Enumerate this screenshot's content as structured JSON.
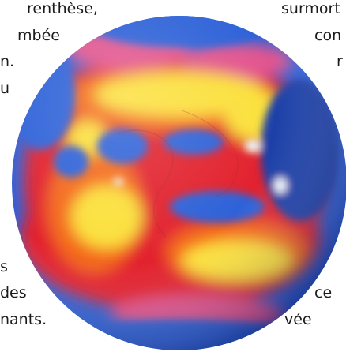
{
  "text_fragments": {
    "left": [
      "renthèse,",
      "mbée",
      "n.",
      "u",
      "s",
      "des",
      "nants."
    ],
    "right": [
      "surmort",
      "con",
      "r",
      "ce",
      "vée"
    ]
  },
  "colors": {
    "ocean_blue": "#2f62d8",
    "ocean_blue_dark": "#1e3fa8",
    "hot_red": "#e2222f",
    "warm_orange": "#f46a1c",
    "warm_yellow": "#fbe03a",
    "magenta": "#e2548f",
    "cloud_white": "#f2f6ff"
  }
}
